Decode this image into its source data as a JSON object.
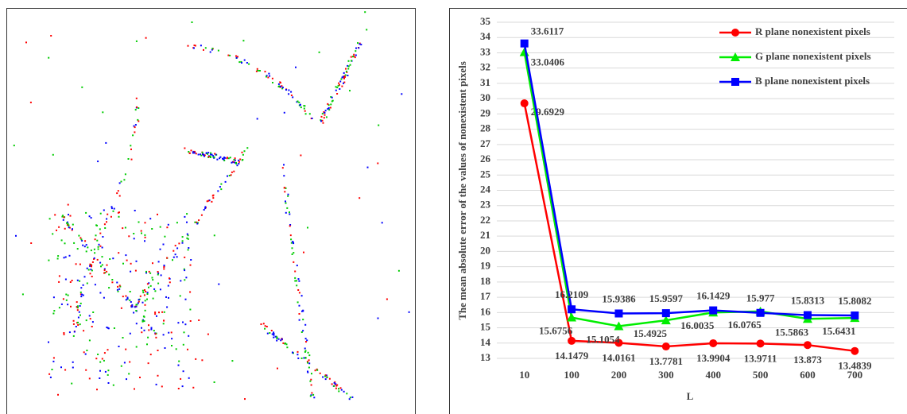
{
  "chart_data": {
    "type": "line",
    "y_label": "The mean absolute error of the values of nonexistent pixels",
    "x_label": "L",
    "categories": [
      "10",
      "100",
      "200",
      "300",
      "400",
      "500",
      "600",
      "700"
    ],
    "series": [
      {
        "name": "R plane nonexistent pixels",
        "color": "#ff0000",
        "marker": "circle",
        "values": [
          29.6929,
          14.1479,
          14.0161,
          13.7781,
          13.9904,
          13.9711,
          13.873,
          13.4839
        ]
      },
      {
        "name": "G plane nonexistent pixels",
        "color": "#00ee00",
        "marker": "triangle",
        "values": [
          33.0406,
          15.6756,
          15.1054,
          15.4925,
          16.0035,
          16.0765,
          15.5863,
          15.6431
        ]
      },
      {
        "name": "B plane nonexistent pixels",
        "color": "#0000ff",
        "marker": "square",
        "values": [
          33.6117,
          16.2109,
          15.9386,
          15.9597,
          16.1429,
          15.977,
          15.8313,
          15.8082
        ]
      }
    ],
    "ylim": [
      13,
      35
    ],
    "yticks": [
      13,
      14,
      15,
      16,
      17,
      18,
      19,
      20,
      21,
      22,
      23,
      24,
      25,
      26,
      27,
      28,
      29,
      30,
      31,
      32,
      33,
      34,
      35
    ],
    "grid": true,
    "legend": "upper right"
  }
}
